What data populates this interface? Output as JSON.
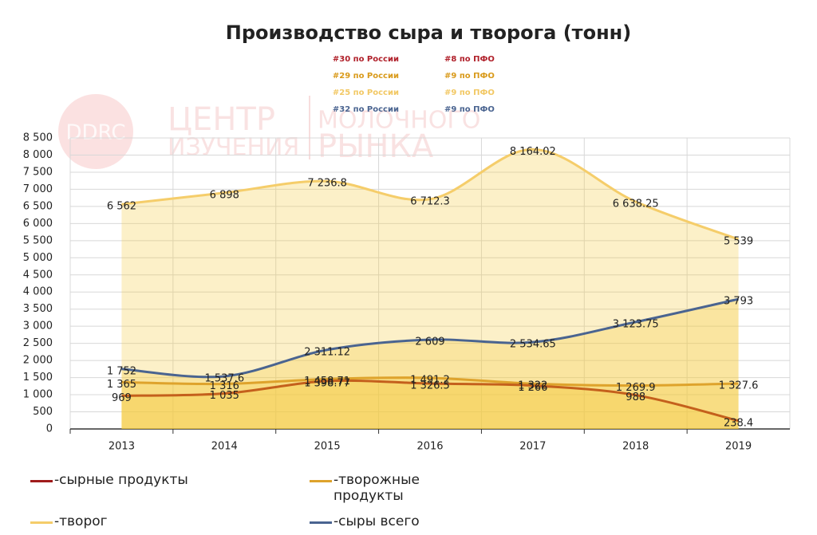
{
  "chart_data": {
    "type": "line",
    "title": "Производство сыра и творога (тонн)",
    "annotations": [
      {
        "left": "#30 по России",
        "right": "#8 по ПФО",
        "color": "#b0202a"
      },
      {
        "left": "#29 по России",
        "right": "#9 по ПФО",
        "color": "#d99a1a"
      },
      {
        "left": "#25 по России",
        "right": "#9 по ПФО",
        "color": "#f2c864"
      },
      {
        "left": "#32 по России",
        "right": "#9 по ПФО",
        "color": "#4a6490"
      }
    ],
    "watermark": [
      "DDRC",
      "ЦЕНТР",
      "ИЗУЧЕНИЯ",
      "МОЛОЧНОГО",
      "РЫНКА"
    ],
    "categories": [
      "2013",
      "2014",
      "2015",
      "2016",
      "2017",
      "2018",
      "2019"
    ],
    "series": [
      {
        "name": "-творог",
        "color": "#f5cd6a",
        "values": [
          6562,
          6898,
          7236.8,
          6712.3,
          8164.02,
          6638.25,
          5539
        ],
        "value_labels": [
          "6 562",
          "6 898",
          "7 236.8",
          "6 712.3",
          "8 164.02",
          "6 638.25",
          "5 539"
        ]
      },
      {
        "name": "-сыры всего",
        "color": "#4a6490",
        "values": [
          1752,
          1537.6,
          2311.12,
          2609,
          2534.65,
          3123.75,
          3793
        ],
        "value_labels": [
          "1 752",
          "1 537.6",
          "2 311.12",
          "2 609",
          "2 534.65",
          "3 123.75",
          "3 793"
        ]
      },
      {
        "name": "-творожные продукты",
        "color": "#dea32c",
        "values": [
          1365,
          1316,
          1458.71,
          1491.2,
          1322,
          1269.9,
          1327.6
        ],
        "value_labels": [
          "1 365",
          "1 316",
          "1 458.71",
          "1 491.2",
          "1 322",
          "1 269.9",
          "1 327.6"
        ]
      },
      {
        "name": "-сырные продукты",
        "color": "#c4601c",
        "values": [
          969,
          1035,
          1398.77,
          1326.5,
          1266,
          988,
          238.4
        ],
        "value_labels": [
          "969",
          "1 035",
          "1 398.77",
          "1 326.5",
          "1 266",
          "988",
          "238.4"
        ]
      }
    ],
    "ylim": [
      0,
      8500
    ],
    "yticks": [
      0,
      500,
      {
        "value": 1000,
        "label": "1 000"
      },
      {
        "value": 1500,
        "label": "1 500"
      },
      {
        "value": 2000,
        "label": "2 000"
      },
      {
        "value": 2500,
        "label": "2 500"
      },
      {
        "value": 3000,
        "label": "3 000"
      },
      {
        "value": 3500,
        "label": "3 500"
      },
      {
        "value": 4000,
        "label": "4 000"
      },
      {
        "value": 4500,
        "label": "4 500"
      },
      {
        "value": 5000,
        "label": "5 000"
      },
      {
        "value": 5500,
        "label": "5 500"
      },
      {
        "value": 6000,
        "label": "6 000"
      },
      {
        "value": 6500,
        "label": "6 500"
      },
      {
        "value": 7000,
        "label": "7 000"
      },
      {
        "value": 7500,
        "label": "7 500"
      },
      {
        "value": 8000,
        "label": "8 000"
      },
      {
        "value": 8500,
        "label": "8 500"
      }
    ],
    "grid": true
  }
}
